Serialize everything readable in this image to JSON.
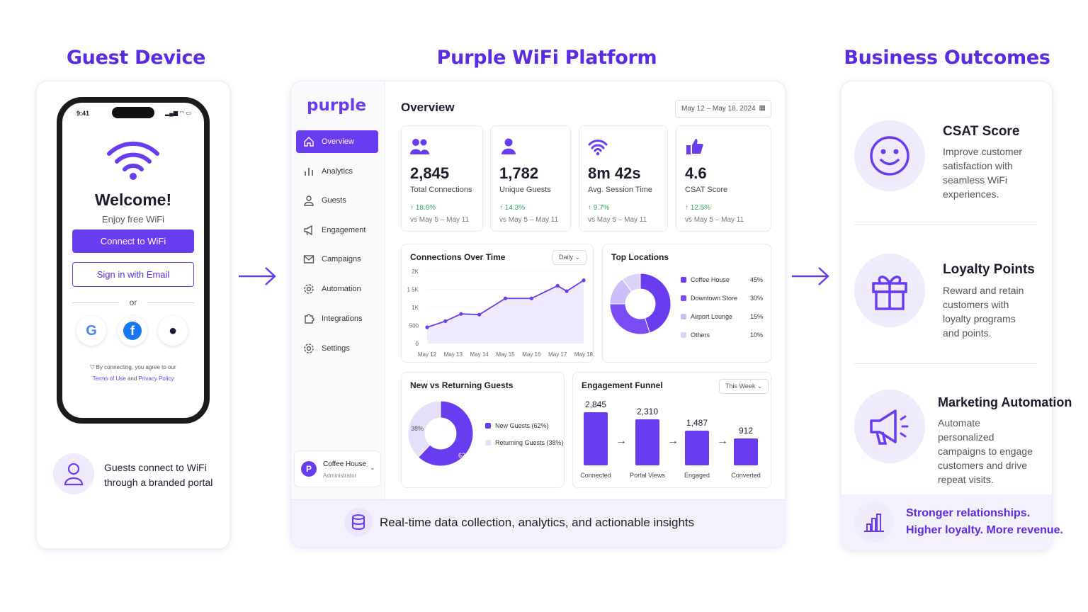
{
  "sections": {
    "guest": "Guest Device",
    "platform": "Purple WiFi Platform",
    "outcomes": "Business Outcomes"
  },
  "phone": {
    "time": "9:41",
    "welcome": "Welcome!",
    "subtitle": "Enjoy free WiFi",
    "connect_button": "Connect to WiFi",
    "email_button": "Sign in with Email",
    "or": "or",
    "legal_prefix": "By connecting, you agree to our",
    "terms": "Terms of Use",
    "and": "and",
    "privacy": "Privacy Policy"
  },
  "guest_caption": "Guests connect to WiFi through a branded portal",
  "dashboard": {
    "logo": "purple",
    "nav": [
      {
        "label": "Overview",
        "icon": "home-icon"
      },
      {
        "label": "Analytics",
        "icon": "bar-chart-icon"
      },
      {
        "label": "Guests",
        "icon": "user-icon"
      },
      {
        "label": "Engagement",
        "icon": "megaphone-icon"
      },
      {
        "label": "Campaigns",
        "icon": "mail-icon"
      },
      {
        "label": "Automation",
        "icon": "gear-icon"
      },
      {
        "label": "Integrations",
        "icon": "puzzle-icon"
      },
      {
        "label": "Settings",
        "icon": "gear-icon"
      }
    ],
    "account": {
      "initial": "P",
      "name": "Coffee House",
      "role": "Administrator"
    },
    "title": "Overview",
    "date_range": "May 12 – May 18, 2024",
    "kpis": [
      {
        "value": "2,845",
        "label": "Total Connections",
        "change": "↑ 18.6%",
        "vs": "vs May 5 – May 11",
        "icon": "users-icon"
      },
      {
        "value": "1,782",
        "label": "Unique Guests",
        "change": "↑ 14.3%",
        "vs": "vs May 5 – May 11",
        "icon": "user-icon"
      },
      {
        "value": "8m 42s",
        "label": "Avg. Session Time",
        "change": "↑ 9.7%",
        "vs": "vs May 5 – May 11",
        "icon": "wifi-icon"
      },
      {
        "value": "4.6",
        "label": "CSAT Score",
        "change": "↑ 12.5%",
        "vs": "vs May 5 – May 11",
        "icon": "thumbs-up-icon"
      }
    ],
    "connections_dropdown": "Daily",
    "funnel_dropdown": "This Week",
    "footer": "Real-time data collection, analytics, and actionable insights"
  },
  "chart_data": [
    {
      "type": "line",
      "title": "Connections Over Time",
      "categories": [
        "May 12",
        "May 13",
        "May 14",
        "May 15",
        "May 16",
        "May 17",
        "May 18"
      ],
      "yticks": [
        "0",
        "500",
        "1K",
        "1.5K",
        "2K"
      ],
      "ylim": [
        0,
        2000
      ],
      "x": [
        0,
        0.7,
        1.3,
        2,
        3,
        4,
        5,
        5.35,
        6
      ],
      "values": [
        450,
        620,
        820,
        800,
        1250,
        1250,
        1600,
        1450,
        1750
      ]
    },
    {
      "type": "pie",
      "title": "Top Locations",
      "labels": [
        "Coffee House",
        "Downtown Store",
        "Airport Lounge",
        "Others"
      ],
      "display": [
        "45%",
        "30%",
        "15%",
        "10%"
      ],
      "values": [
        45,
        30,
        15,
        10
      ],
      "colors": [
        "#6a3cf0",
        "#7a4cf5",
        "#cbbdf7",
        "#ddd3fa"
      ]
    },
    {
      "type": "pie",
      "title": "New vs Returning Guests",
      "labels": [
        "New Guests (62%)",
        "Returning Guests (38%)"
      ],
      "display": [
        "62%",
        "38%"
      ],
      "values": [
        62,
        38
      ],
      "colors": [
        "#6a3cf0",
        "#e6e0fb"
      ]
    },
    {
      "type": "bar",
      "title": "Engagement Funnel",
      "categories": [
        "Connected",
        "Portal Views",
        "Engaged",
        "Converted"
      ],
      "display": [
        "2,845",
        "2,310",
        "1,487",
        "912"
      ],
      "values": [
        2845,
        2310,
        1487,
        912
      ]
    }
  ],
  "outcomes": [
    {
      "title": "CSAT Score",
      "desc": "Improve customer satisfaction with seamless WiFi experiences.",
      "icon": "smiley-icon"
    },
    {
      "title": "Loyalty Points",
      "desc": "Reward and retain customers with loyalty programs and points.",
      "icon": "gift-icon"
    },
    {
      "title": "Marketing Automation",
      "desc": "Automate personalized campaigns to engage customers and drive repeat visits.",
      "icon": "megaphone-icon"
    }
  ],
  "outcome_footer": {
    "line1": "Stronger relationships.",
    "line2": "Higher loyalty. More revenue."
  },
  "colors": {
    "accent": "#6a3cf0",
    "title": "#5a2be0",
    "positive": "#2aa85a"
  }
}
